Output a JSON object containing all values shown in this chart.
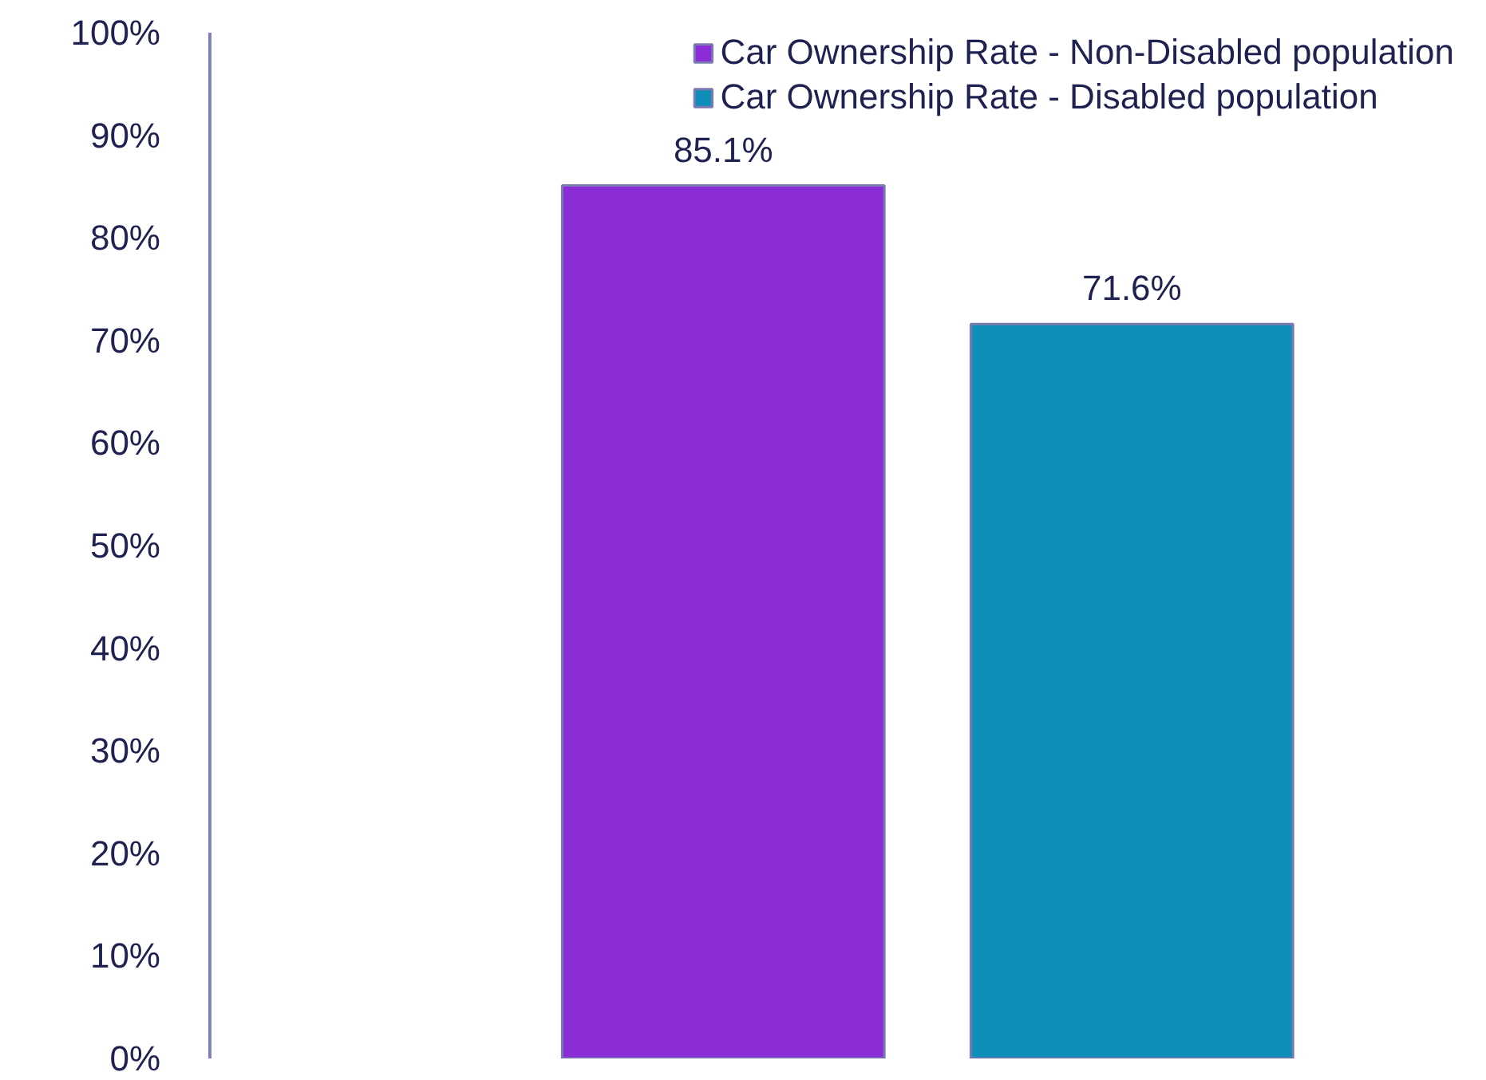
{
  "chart_data": {
    "type": "bar",
    "categories": [
      null
    ],
    "series": [
      {
        "name": "Car Ownership Rate - Non-Disabled population",
        "color": "#8a2dd6",
        "values": [
          85.1
        ],
        "value_labels": [
          "85.1%"
        ]
      },
      {
        "name": "Car Ownership Rate - Disabled population",
        "color": "#0e8fba",
        "values": [
          71.6
        ],
        "value_labels": [
          "71.6%"
        ]
      }
    ],
    "ylim": [
      0,
      100
    ],
    "yticks": [
      {
        "value": 0,
        "label": "0%"
      },
      {
        "value": 10,
        "label": "10%"
      },
      {
        "value": 20,
        "label": "20%"
      },
      {
        "value": 30,
        "label": "30%"
      },
      {
        "value": 40,
        "label": "40%"
      },
      {
        "value": 50,
        "label": "50%"
      },
      {
        "value": 60,
        "label": "60%"
      },
      {
        "value": 70,
        "label": "70%"
      },
      {
        "value": 80,
        "label": "80%"
      },
      {
        "value": 90,
        "label": "90%"
      },
      {
        "value": 100,
        "label": "100%"
      }
    ],
    "grid": false,
    "legend": "top right"
  }
}
